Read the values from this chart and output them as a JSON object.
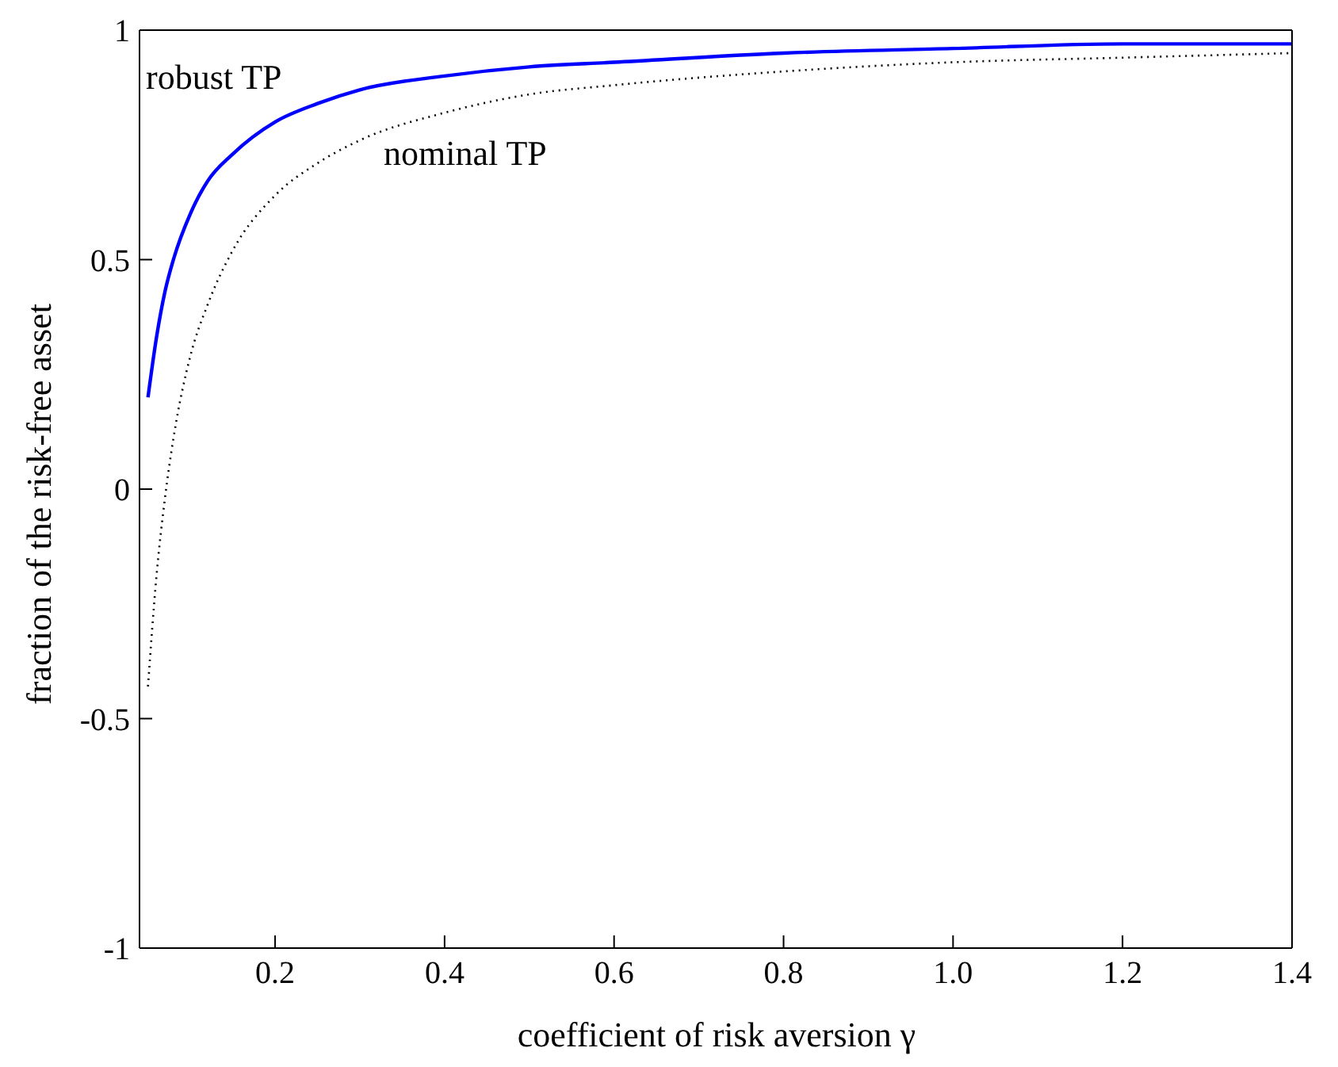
{
  "chart_data": {
    "type": "line",
    "xlabel": "coefficient of risk aversion γ",
    "ylabel": "fraction of the risk-free asset",
    "x": [
      0.05,
      0.06,
      0.07,
      0.08,
      0.1,
      0.12,
      0.15,
      0.2,
      0.25,
      0.3,
      0.4,
      0.5,
      0.6,
      0.8,
      1.0,
      1.2,
      1.4
    ],
    "series": [
      {
        "color": "#0000ff",
        "line_style": "solid",
        "values": [
          0.2,
          0.33,
          0.43,
          0.5,
          0.6,
          0.67,
          0.73,
          0.8,
          0.84,
          0.87,
          0.9,
          0.92,
          0.93,
          0.95,
          0.96,
          0.97,
          0.97
        ]
      },
      {
        "color": "#000000",
        "line_style": "dotted",
        "values": [
          -0.43,
          -0.19,
          -0.02,
          0.11,
          0.29,
          0.4,
          0.52,
          0.64,
          0.71,
          0.76,
          0.82,
          0.86,
          0.88,
          0.91,
          0.93,
          0.94,
          0.95
        ]
      }
    ],
    "annotations": [
      "robust TP",
      "nominal TP"
    ],
    "xlim": [
      0.04,
      1.4
    ],
    "xticks": [
      0.2,
      0.4,
      0.6,
      0.8,
      {
        "value": 1,
        "label": "1.0"
      },
      1.2,
      1.4
    ],
    "ylim": [
      -1,
      1
    ],
    "yticks": [
      -1,
      -0.5,
      0,
      0.5,
      1
    ],
    "grid": false,
    "legend": false,
    "marker": "none"
  }
}
